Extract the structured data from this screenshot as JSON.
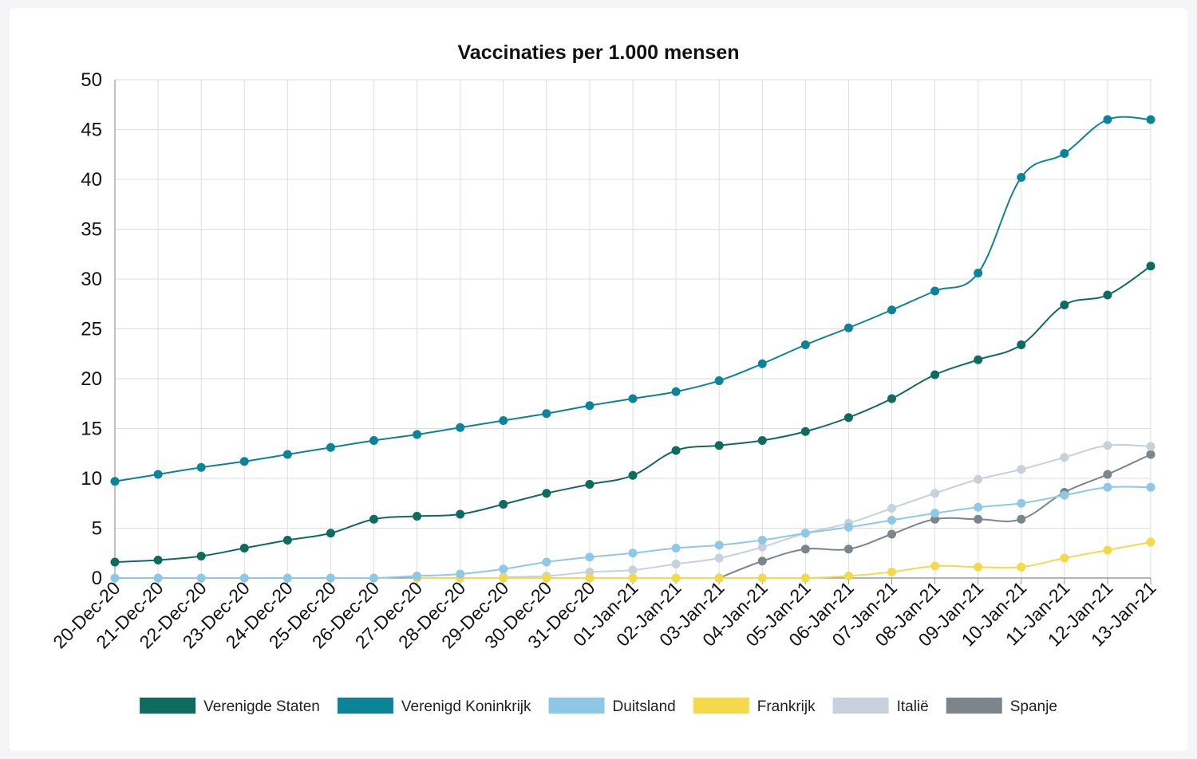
{
  "chart_data": {
    "type": "line",
    "title": "Vaccinaties per 1.000 mensen",
    "xlabel": "",
    "ylabel": "",
    "ylim": [
      0,
      50
    ],
    "yticks": [
      0,
      5,
      10,
      15,
      20,
      25,
      30,
      35,
      40,
      45,
      50
    ],
    "grid": true,
    "legend_position": "bottom",
    "categories": [
      "20-Dec-20",
      "21-Dec-20",
      "22-Dec-20",
      "23-Dec-20",
      "24-Dec-20",
      "25-Dec-20",
      "26-Dec-20",
      "27-Dec-20",
      "28-Dec-20",
      "29-Dec-20",
      "30-Dec-20",
      "31-Dec-20",
      "01-Jan-21",
      "02-Jan-21",
      "03-Jan-21",
      "04-Jan-21",
      "05-Jan-21",
      "06-Jan-21",
      "07-Jan-21",
      "08-Jan-21",
      "09-Jan-21",
      "10-Jan-21",
      "11-Jan-21",
      "12-Jan-21",
      "13-Jan-21"
    ],
    "series": [
      {
        "name": "Verenigde Staten",
        "color": "#0e6b5f",
        "values": [
          1.6,
          1.8,
          2.2,
          3.0,
          3.8,
          4.5,
          5.9,
          6.2,
          6.4,
          7.4,
          8.5,
          9.4,
          10.3,
          12.8,
          13.3,
          13.8,
          14.7,
          16.1,
          18.0,
          20.4,
          21.9,
          23.4,
          27.4,
          28.4,
          31.3
        ]
      },
      {
        "name": "Verenigd Koninkrijk",
        "color": "#0b8499",
        "values": [
          9.7,
          10.4,
          11.1,
          11.7,
          12.4,
          13.1,
          13.8,
          14.4,
          15.1,
          15.8,
          16.5,
          17.3,
          18.0,
          18.7,
          19.8,
          21.5,
          23.4,
          25.1,
          26.9,
          28.8,
          30.6,
          40.2,
          42.6,
          46.0,
          46.0
        ]
      },
      {
        "name": "Duitsland",
        "color": "#8ec8e8",
        "values": [
          0,
          0,
          0,
          0,
          0,
          0,
          0,
          0.2,
          0.4,
          0.9,
          1.6,
          2.1,
          2.5,
          3.0,
          3.3,
          3.8,
          4.5,
          5.1,
          5.8,
          6.5,
          7.1,
          7.5,
          8.3,
          9.1,
          9.1
        ]
      },
      {
        "name": "Frankrijk",
        "color": "#f4d94a",
        "values": [
          null,
          null,
          null,
          null,
          null,
          null,
          null,
          0,
          0,
          0,
          0,
          0,
          0,
          0,
          0,
          0,
          0,
          0.2,
          0.6,
          1.2,
          1.1,
          1.1,
          2.0,
          2.8,
          3.6
        ]
      },
      {
        "name": "Italië",
        "color": "#c7d0db",
        "values": [
          null,
          null,
          null,
          null,
          null,
          null,
          null,
          null,
          null,
          0.1,
          0.2,
          0.6,
          0.8,
          1.4,
          2.0,
          3.1,
          4.5,
          5.5,
          7.0,
          8.5,
          9.9,
          10.9,
          12.1,
          13.3,
          13.2
        ]
      },
      {
        "name": "Spanje",
        "color": "#7c858b",
        "values": [
          null,
          null,
          null,
          null,
          null,
          null,
          null,
          null,
          null,
          null,
          null,
          null,
          null,
          null,
          0,
          1.7,
          2.9,
          2.9,
          4.4,
          5.9,
          5.9,
          5.9,
          8.6,
          10.4,
          12.4
        ]
      }
    ]
  }
}
